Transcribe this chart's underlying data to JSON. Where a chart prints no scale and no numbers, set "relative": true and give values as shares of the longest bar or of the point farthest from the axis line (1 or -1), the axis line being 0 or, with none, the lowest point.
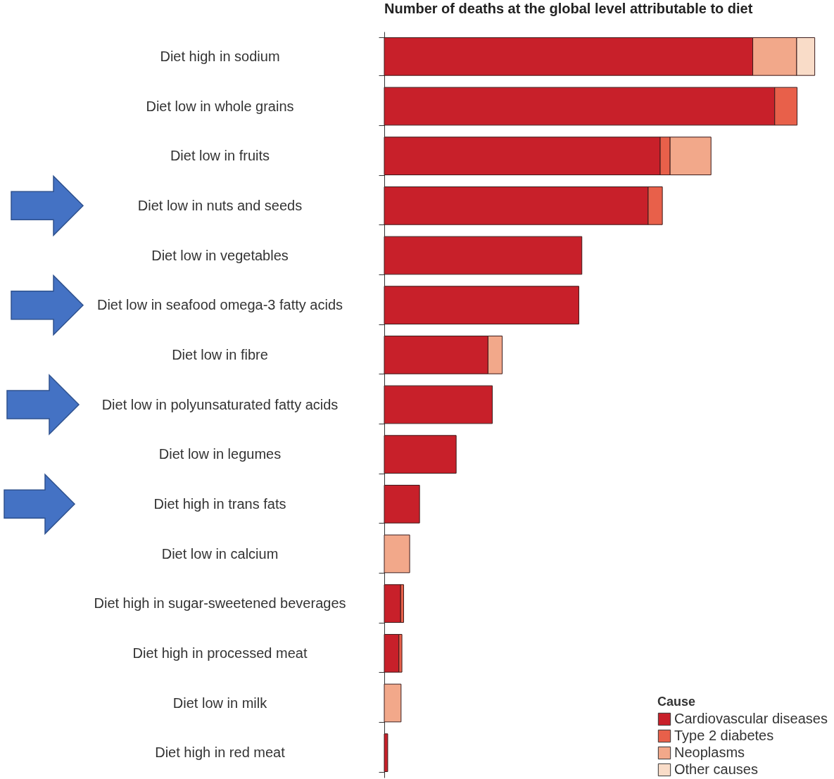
{
  "chart_data": {
    "type": "bar",
    "orientation": "horizontal",
    "stacked": true,
    "relative": true,
    "title": "Number of deaths at the global level attributable to diet",
    "legend_title": "Cause",
    "legend": "bottom right",
    "categories": [
      "Diet high in sodium",
      "Diet low in whole grains",
      "Diet low in fruits",
      "Diet low in nuts and seeds",
      "Diet low in vegetables",
      "Diet low in seafood omega-3 fatty acids",
      "Diet low in fibre",
      "Diet low in polyunsaturated fatty acids",
      "Diet low in legumes",
      "Diet high in trans fats",
      "Diet low in calcium",
      "Diet high in sugar-sweetened beverages",
      "Diet high in processed meat",
      "Diet low in milk",
      "Diet high in red meat"
    ],
    "series": [
      {
        "name": "Cardiovascular diseases",
        "color": "#c8202a",
        "values": [
          0.856,
          0.907,
          0.641,
          0.613,
          0.459,
          0.452,
          0.241,
          0.251,
          0.167,
          0.082,
          null,
          0.038,
          0.034,
          null,
          0.008
        ]
      },
      {
        "name": "Type 2 diabetes",
        "color": "#e8604a",
        "values": [
          null,
          0.052,
          0.023,
          0.033,
          null,
          null,
          null,
          null,
          null,
          null,
          null,
          0.007,
          0.007,
          null,
          null
        ]
      },
      {
        "name": "Neoplasms",
        "color": "#f2a88a",
        "values": [
          0.102,
          null,
          0.095,
          null,
          null,
          null,
          0.033,
          null,
          null,
          null,
          0.059,
          null,
          null,
          0.039,
          null
        ]
      },
      {
        "name": "Other causes",
        "color": "#f9dcc8",
        "values": [
          0.042,
          null,
          null,
          null,
          null,
          null,
          null,
          null,
          null,
          null,
          null,
          null,
          null,
          null,
          null
        ]
      }
    ]
  }
}
